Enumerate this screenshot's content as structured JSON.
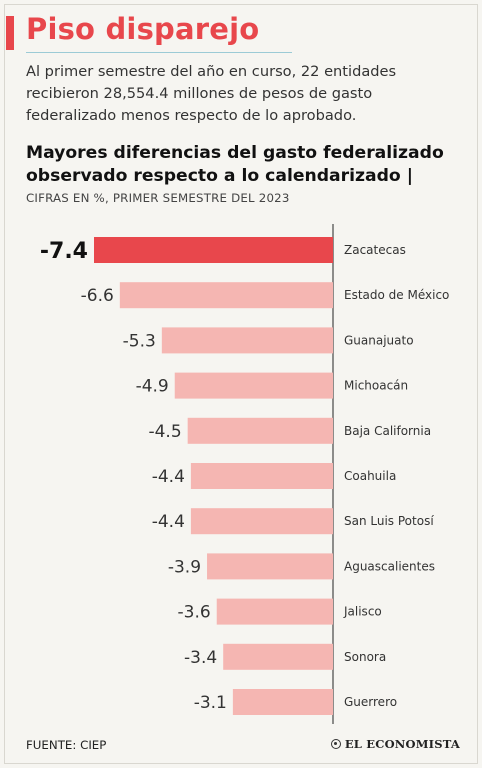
{
  "header": {
    "title": "Piso disparejo",
    "intro": "Al primer semestre del año en curso, 22 entidades recibieron 28,554.4 millones de pesos de gasto federalizado menos respecto de lo aprobado."
  },
  "chart_heading": {
    "title": "Mayores diferencias del gasto federalizado observado respecto a lo calendarizado |",
    "subtitle": "CIFRAS EN %, PRIMER SEMESTRE DEL 2023"
  },
  "chart_data": {
    "type": "bar",
    "orientation": "horizontal",
    "title": "Mayores diferencias del gasto federalizado observado respecto a lo calendarizado",
    "subtitle": "CIFRAS EN %, PRIMER SEMESTRE DEL 2023",
    "categories": [
      "Zacatecas",
      "Estado de México",
      "Guanajuato",
      "Michoacán",
      "Baja California",
      "Coahuila",
      "San Luis Potosí",
      "Aguascalientes",
      "Jalisco",
      "Sonora",
      "Guerrero"
    ],
    "values": [
      -7.4,
      -6.6,
      -5.3,
      -4.9,
      -4.5,
      -4.4,
      -4.4,
      -3.9,
      -3.6,
      -3.4,
      -3.1
    ],
    "labels": [
      "-7.4",
      "-6.6",
      "-5.3",
      "-4.9",
      "-4.5",
      "-4.4",
      "-4.4",
      "-3.9",
      "-3.6",
      "-3.4",
      "-3.1"
    ],
    "xlim": [
      -7.4,
      0
    ],
    "grid": false,
    "legend": "none",
    "colors": {
      "highlight": "#e8474c",
      "bar": "#f5b6b2",
      "axis": "#222222"
    }
  },
  "footer": {
    "source": "FUENTE: CIEP",
    "brand": "EL ECONOMISTA"
  }
}
